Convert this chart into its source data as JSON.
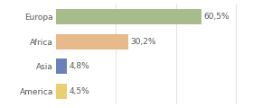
{
  "categories": [
    "Europa",
    "Africa",
    "Asia",
    "America"
  ],
  "values": [
    60.5,
    30.2,
    4.8,
    4.5
  ],
  "labels": [
    "60,5%",
    "30,2%",
    "4,8%",
    "4,5%"
  ],
  "bar_colors": [
    "#a8bb8a",
    "#e8b98a",
    "#6a82b8",
    "#e8d070"
  ],
  "background_color": "#ffffff",
  "xlim": [
    0,
    80
  ],
  "bar_height": 0.62,
  "label_fontsize": 6.5,
  "category_fontsize": 6.5,
  "grid_lines": [
    25,
    50,
    75
  ],
  "grid_color": "#dddddd",
  "text_color": "#555555"
}
